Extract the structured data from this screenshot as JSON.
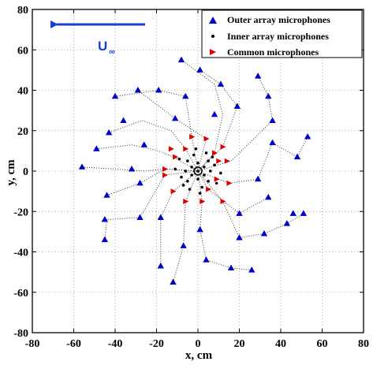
{
  "chart_data": {
    "type": "scatter",
    "xlabel": "x, cm",
    "ylabel": "y, cm",
    "xlim": [
      -80,
      80
    ],
    "ylim": [
      -80,
      80
    ],
    "xticks": [
      -80,
      -60,
      -40,
      -20,
      0,
      20,
      40,
      60,
      80
    ],
    "yticks": [
      -80,
      -60,
      -40,
      -20,
      0,
      20,
      40,
      60,
      80
    ],
    "grid": true,
    "legend_position": "top-right",
    "flow_label": "U",
    "flow_label_sub": "∞",
    "colors": {
      "outer": "#0000cc",
      "inner": "#000000",
      "common": "#dd0000",
      "arm": "#333333",
      "flow": "#1a3fd1"
    },
    "series": [
      {
        "name": "Outer array microphones",
        "marker": "triangle-up",
        "points": [
          [
            -56,
            2
          ],
          [
            -49,
            11
          ],
          [
            -43,
            19
          ],
          [
            -36,
            25
          ],
          [
            -29,
            40
          ],
          [
            -19,
            40
          ],
          [
            -8,
            55
          ],
          [
            1,
            50
          ],
          [
            11,
            43
          ],
          [
            19,
            32
          ],
          [
            29,
            47
          ],
          [
            34,
            37
          ],
          [
            36,
            25
          ],
          [
            36,
            14
          ],
          [
            53,
            17
          ],
          [
            48,
            7
          ],
          [
            -40,
            37
          ],
          [
            -32,
            1
          ],
          [
            -26,
            13
          ],
          [
            -11,
            26
          ],
          [
            -6,
            37
          ],
          [
            8,
            28
          ],
          [
            29,
            -4
          ],
          [
            34,
            -13
          ],
          [
            43,
            -26
          ],
          [
            51,
            -21
          ],
          [
            46,
            -21
          ],
          [
            32,
            -31
          ],
          [
            20,
            -33
          ],
          [
            20,
            -21
          ],
          [
            -45,
            -24
          ],
          [
            -45,
            -34
          ],
          [
            -44,
            -12
          ],
          [
            -28,
            -23
          ],
          [
            -28,
            -6
          ],
          [
            -18,
            -23
          ],
          [
            -18,
            -47
          ],
          [
            -12,
            -55
          ],
          [
            -7,
            -37
          ],
          [
            4,
            -44
          ],
          [
            16,
            -48
          ],
          [
            26,
            -49
          ],
          [
            1,
            -29
          ]
        ]
      },
      {
        "name": "Inner array microphones",
        "marker": "dot",
        "points": [
          [
            0,
            0
          ],
          [
            -3,
            2
          ],
          [
            3,
            2
          ],
          [
            -3,
            -2
          ],
          [
            3,
            -2
          ],
          [
            0,
            4
          ],
          [
            0,
            -4
          ],
          [
            -6,
            0
          ],
          [
            6,
            0
          ],
          [
            -5,
            5
          ],
          [
            5,
            5
          ],
          [
            -5,
            -5
          ],
          [
            5,
            -5
          ],
          [
            -2,
            8
          ],
          [
            2,
            -8
          ],
          [
            -8,
            -3
          ],
          [
            8,
            3
          ],
          [
            -9,
            6
          ],
          [
            9,
            -6
          ],
          [
            -4,
            -9
          ],
          [
            4,
            9
          ],
          [
            -11,
            1
          ],
          [
            11,
            -1
          ],
          [
            -7,
            -7
          ],
          [
            7,
            7
          ],
          [
            -1,
            11
          ],
          [
            1,
            -11
          ]
        ]
      },
      {
        "name": "Common microphones",
        "marker": "triangle-right",
        "points": [
          [
            -13,
            11
          ],
          [
            -6,
            11
          ],
          [
            -3,
            17
          ],
          [
            4,
            16
          ],
          [
            8,
            9
          ],
          [
            12,
            12
          ],
          [
            14,
            5
          ],
          [
            15,
            -6
          ],
          [
            12,
            -15
          ],
          [
            -16,
            1
          ],
          [
            -12,
            -10
          ],
          [
            -6,
            -15
          ],
          [
            2,
            -15
          ],
          [
            5,
            -9
          ],
          [
            9,
            -4
          ],
          [
            10,
            5
          ],
          [
            -11,
            7
          ],
          [
            -16,
            -2
          ]
        ]
      }
    ],
    "arms": [
      [
        [
          -56,
          2
        ],
        [
          -40,
          1
        ],
        [
          -26,
          0
        ],
        [
          -16,
          1
        ],
        [
          0,
          0
        ]
      ],
      [
        [
          -49,
          11
        ],
        [
          -32,
          13
        ],
        [
          -19,
          10
        ],
        [
          -12,
          7
        ],
        [
          0,
          0
        ]
      ],
      [
        [
          -43,
          19
        ],
        [
          -27,
          25
        ],
        [
          -13,
          20
        ],
        [
          -6,
          11
        ],
        [
          0,
          0
        ]
      ],
      [
        [
          -40,
          37
        ],
        [
          -19,
          40
        ],
        [
          -6,
          37
        ],
        [
          -3,
          17
        ],
        [
          0,
          0
        ]
      ],
      [
        [
          -29,
          40
        ],
        [
          -11,
          26
        ],
        [
          4,
          16
        ],
        [
          0,
          0
        ]
      ],
      [
        [
          -8,
          55
        ],
        [
          8,
          43
        ],
        [
          12,
          28
        ],
        [
          8,
          9
        ],
        [
          0,
          0
        ]
      ],
      [
        [
          1,
          50
        ],
        [
          11,
          43
        ],
        [
          19,
          32
        ],
        [
          12,
          12
        ],
        [
          0,
          0
        ]
      ],
      [
        [
          29,
          47
        ],
        [
          34,
          37
        ],
        [
          36,
          25
        ],
        [
          16,
          5
        ],
        [
          0,
          0
        ]
      ],
      [
        [
          53,
          17
        ],
        [
          48,
          7
        ],
        [
          36,
          14
        ],
        [
          29,
          -4
        ],
        [
          15,
          -6
        ],
        [
          0,
          0
        ]
      ],
      [
        [
          51,
          -21
        ],
        [
          43,
          -26
        ],
        [
          32,
          -31
        ],
        [
          20,
          -33
        ],
        [
          12,
          -15
        ],
        [
          0,
          0
        ]
      ],
      [
        [
          34,
          -13
        ],
        [
          20,
          -21
        ],
        [
          5,
          -9
        ],
        [
          0,
          0
        ]
      ],
      [
        [
          26,
          -49
        ],
        [
          16,
          -48
        ],
        [
          4,
          -44
        ],
        [
          1,
          -29
        ],
        [
          2,
          -15
        ],
        [
          0,
          0
        ]
      ],
      [
        [
          -12,
          -55
        ],
        [
          -7,
          -37
        ],
        [
          -6,
          -15
        ],
        [
          0,
          0
        ]
      ],
      [
        [
          -18,
          -47
        ],
        [
          -18,
          -23
        ],
        [
          -12,
          -10
        ],
        [
          0,
          0
        ]
      ],
      [
        [
          -45,
          -34
        ],
        [
          -44,
          -24
        ],
        [
          -28,
          -23
        ],
        [
          -16,
          -2
        ],
        [
          0,
          0
        ]
      ],
      [
        [
          -44,
          -12
        ],
        [
          -28,
          -6
        ],
        [
          -16,
          1
        ],
        [
          0,
          0
        ]
      ]
    ]
  }
}
